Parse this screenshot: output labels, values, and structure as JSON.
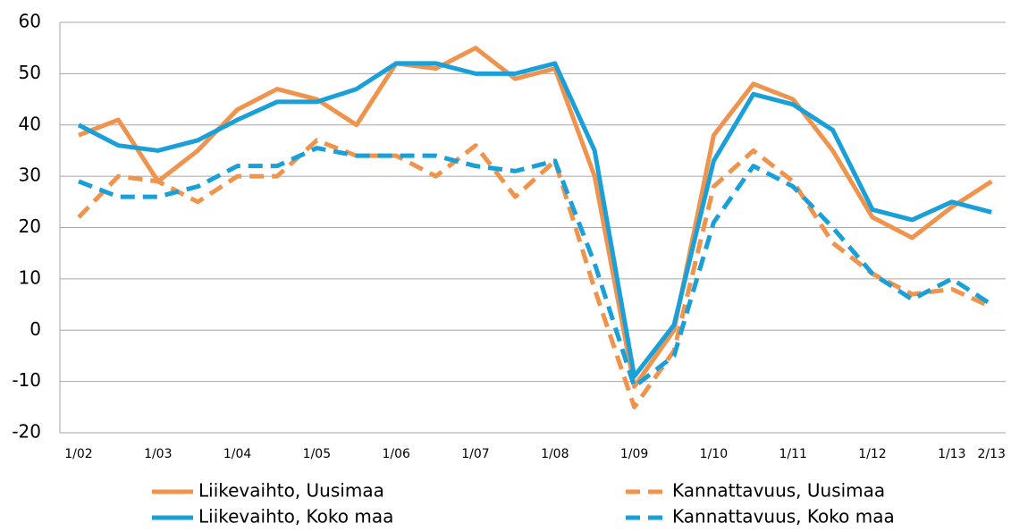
{
  "chart_data": {
    "type": "line",
    "categories": [
      "1/02",
      null,
      "1/03",
      null,
      "1/04",
      null,
      "1/05",
      null,
      "1/06",
      null,
      "1/07",
      null,
      "1/08",
      null,
      "1/09",
      null,
      "1/10",
      null,
      "1/11",
      null,
      "1/12",
      null,
      "1/13",
      "2/13"
    ],
    "series": [
      {
        "name": "Liikevaihto, Uusimaa",
        "color": "#f0944d",
        "dashed": false,
        "values": [
          38,
          41,
          29,
          35,
          43,
          47,
          45,
          40,
          52,
          51,
          55,
          49,
          51,
          30,
          -11,
          0,
          38,
          48,
          45,
          35,
          22,
          18,
          24,
          29
        ]
      },
      {
        "name": "Kannattavuus, Uusimaa",
        "color": "#f0944d",
        "dashed": true,
        "values": [
          22,
          30,
          29,
          25,
          30,
          30,
          37,
          34,
          34,
          30,
          36,
          26,
          33,
          8,
          -15,
          -4,
          28,
          35,
          29,
          17,
          11,
          7,
          8,
          4.5
        ]
      },
      {
        "name": "Liikevaihto, Koko maa",
        "color": "#1aa0d8",
        "dashed": false,
        "values": [
          40,
          36,
          35,
          37,
          41,
          44.5,
          44.5,
          47,
          52,
          52,
          50,
          50,
          52,
          35,
          -9,
          1,
          33,
          46,
          44,
          39,
          23.5,
          21.5,
          25,
          23
        ]
      },
      {
        "name": "Kannattavuus, Koko maa",
        "color": "#1aa0d8",
        "dashed": true,
        "values": [
          29,
          26,
          26,
          28,
          32,
          32,
          35.5,
          34,
          34,
          34,
          32,
          31,
          33,
          13,
          -11,
          -5,
          21,
          32,
          28,
          20,
          11,
          6,
          10,
          5
        ]
      }
    ],
    "ylim": [
      -20,
      60
    ],
    "yticks": [
      -20,
      -10,
      0,
      10,
      20,
      30,
      40,
      50,
      60
    ],
    "grid": true,
    "legend": "bottom"
  }
}
